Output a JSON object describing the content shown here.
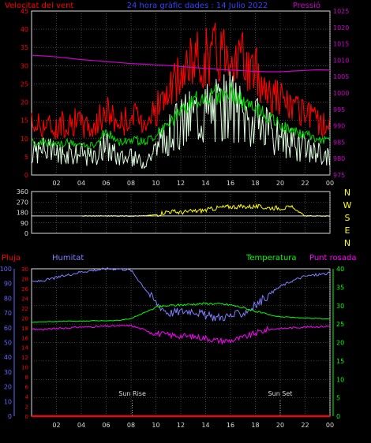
{
  "header": {
    "title": "24 hora gràfic dades : 14 Julio 2022",
    "left_label": "Velocitat del vent",
    "right_label": "Pressió"
  },
  "colors": {
    "gust": "#ff0000",
    "avg_wind": "#00dd00",
    "wind_min": "#e0ffe0",
    "pressure": "#cc00cc",
    "direction": "#ffff00",
    "humidity": "#7f7fff",
    "temperature": "#00ff00",
    "dewpoint": "#ff00ff",
    "rain": "#ff0000",
    "axis_left": "#ff0000",
    "axis_right": "#cc00cc",
    "grid": "#707070",
    "hum_axis": "#6666ff",
    "rain_axis": "#ff0000",
    "temp_axis": "#00ff00",
    "compass": "#ffff00"
  },
  "chart_data": [
    {
      "type": "line",
      "name": "wind-pressure",
      "x_ticks": [
        "02",
        "04",
        "06",
        "08",
        "10",
        "12",
        "14",
        "16",
        "18",
        "20",
        "22",
        "00"
      ],
      "y_left_ticks": [
        "0",
        "5",
        "10",
        "15",
        "20",
        "25",
        "30",
        "35",
        "40",
        "45"
      ],
      "y_right_ticks": [
        "975",
        "980",
        "985",
        "990",
        "995",
        "1000",
        "1005",
        "1010",
        "1015",
        "1020",
        "1025"
      ],
      "ylim_left": [
        0,
        45
      ],
      "ylim_right": [
        975,
        1025
      ],
      "hours": [
        0,
        1,
        2,
        3,
        4,
        5,
        6,
        7,
        8,
        9,
        10,
        11,
        12,
        13,
        14,
        15,
        16,
        17,
        18,
        19,
        20,
        21,
        22,
        23,
        24
      ],
      "series": [
        {
          "name": "Velocitat del vent",
          "values": [
            14,
            14,
            13,
            15,
            14,
            13,
            18,
            14,
            16,
            15,
            18,
            22,
            27,
            31,
            33,
            34,
            36,
            31,
            28,
            24,
            21,
            18,
            16,
            15,
            13
          ]
        },
        {
          "name": "",
          "values": [
            9,
            9,
            8,
            9,
            8,
            8,
            12,
            9,
            10,
            9,
            11,
            14,
            17,
            20,
            22,
            22,
            23,
            20,
            18,
            16,
            14,
            12,
            11,
            10,
            9
          ]
        },
        {
          "name": "",
          "values": [
            5,
            6,
            5,
            5,
            5,
            4,
            7,
            4,
            4,
            3,
            6,
            9,
            12,
            14,
            15,
            15,
            16,
            14,
            12,
            10,
            8,
            7,
            6,
            5,
            4
          ]
        },
        {
          "name": "Pressió",
          "values": [
            1011.5,
            1011.3,
            1011.0,
            1010.6,
            1010.2,
            1009.9,
            1009.6,
            1009.3,
            1009.0,
            1008.8,
            1008.6,
            1008.4,
            1008.1,
            1007.8,
            1007.5,
            1007.2,
            1007.0,
            1006.8,
            1006.6,
            1006.5,
            1006.5,
            1006.7,
            1006.9,
            1007.1,
            1007.0
          ]
        }
      ]
    },
    {
      "type": "line",
      "name": "wind-direction",
      "y_ticks": [
        "0",
        "90",
        "180",
        "270",
        "360"
      ],
      "compass": [
        "N",
        "W",
        "S",
        "E",
        "N"
      ],
      "ylim": [
        0,
        360
      ],
      "hours": [
        0,
        1,
        2,
        3,
        4,
        5,
        6,
        7,
        8,
        9,
        10,
        11,
        12,
        13,
        14,
        15,
        16,
        17,
        18,
        19,
        20,
        21,
        22,
        23,
        24
      ],
      "series": [
        {
          "name": "",
          "values": [
            null,
            null,
            null,
            null,
            150,
            150,
            150,
            150,
            150,
            150,
            160,
            190,
            180,
            190,
            200,
            220,
            230,
            230,
            230,
            220,
            220,
            220,
            150,
            150,
            150
          ]
        }
      ]
    },
    {
      "type": "line",
      "name": "temp-humidity",
      "x_ticks": [
        "02",
        "04",
        "06",
        "08",
        "10",
        "12",
        "14",
        "16",
        "18",
        "20",
        "22",
        "00"
      ],
      "left_title": "Pluja",
      "hum_title": "Humitat",
      "temp_title": "Temperatura",
      "dew_title": "Punt rosada",
      "rain_ticks": [
        "0",
        "2",
        "4",
        "6",
        "8",
        "10",
        "12",
        "14",
        "16",
        "18",
        "20",
        "22",
        "24",
        "26",
        "28",
        "30"
      ],
      "hum_ticks": [
        "0",
        "10",
        "20",
        "30",
        "40",
        "50",
        "60",
        "70",
        "80",
        "90",
        "100"
      ],
      "temp_ticks": [
        "0",
        "5",
        "10",
        "15",
        "20",
        "25",
        "30",
        "35",
        "40"
      ],
      "ylim_hum": [
        0,
        100
      ],
      "ylim_temp": [
        0,
        40
      ],
      "hours": [
        0,
        1,
        2,
        3,
        4,
        5,
        6,
        7,
        8,
        9,
        10,
        11,
        12,
        13,
        14,
        15,
        16,
        17,
        18,
        19,
        20,
        21,
        22,
        23,
        24
      ],
      "series": [
        {
          "name": "Humitat",
          "values": [
            91,
            92,
            94,
            96,
            98,
            99,
            100,
            100,
            99,
            88,
            77,
            70,
            71,
            72,
            68,
            67,
            68,
            70,
            75,
            82,
            88,
            92,
            95,
            96,
            97
          ]
        },
        {
          "name": "Temperatura",
          "values": [
            25.5,
            25.6,
            25.7,
            25.8,
            25.8,
            25.9,
            25.9,
            26,
            26.5,
            28,
            29.5,
            30,
            30.2,
            30.4,
            30.6,
            30.5,
            30.2,
            29.5,
            28.5,
            27.5,
            27,
            26.8,
            26.6,
            26.5,
            26.4
          ]
        },
        {
          "name": "Punt rosada",
          "values": [
            23.5,
            23.6,
            23.8,
            24,
            24.2,
            24.3,
            24.4,
            24.5,
            24.6,
            23.5,
            22.5,
            22,
            21.8,
            21.6,
            21.2,
            20.5,
            20.5,
            21.3,
            22.5,
            23.5,
            23.8,
            24,
            24.2,
            24.3,
            24.4
          ]
        },
        {
          "name": "Pluja",
          "values": [
            0,
            0,
            0,
            0,
            0,
            0,
            0,
            0,
            0,
            0,
            0,
            0,
            0,
            0,
            0,
            0,
            0,
            0,
            0,
            0,
            0,
            0,
            0,
            0,
            0
          ]
        }
      ],
      "annotations": [
        {
          "label": "Sun Rise",
          "hour": 8.1
        },
        {
          "label": "Sun Set",
          "hour": 20.0
        }
      ]
    }
  ]
}
